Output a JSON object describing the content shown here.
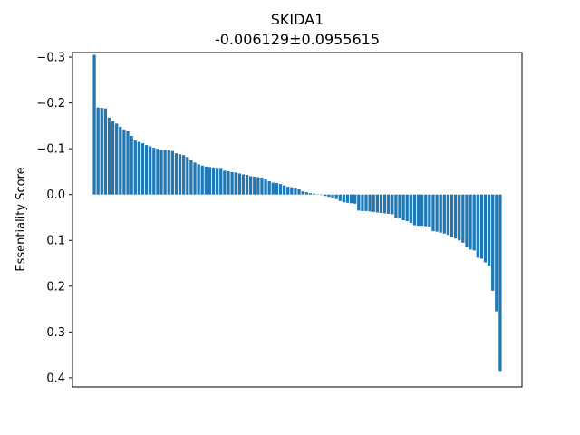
{
  "chart_data": {
    "type": "bar",
    "title": "SKIDA1",
    "subtitle": "-0.006129±0.0955615",
    "xlabel": "",
    "ylabel": "Essentiality Score",
    "ylim": [
      -0.31,
      0.42
    ],
    "y_inverted": true,
    "yticks": [
      -0.3,
      -0.2,
      -0.1,
      0.0,
      0.1,
      0.2,
      0.3,
      0.4
    ],
    "ytick_labels": [
      "−0.3",
      "−0.2",
      "−0.1",
      "0.0",
      "0.1",
      "0.2",
      "0.3",
      "0.4"
    ],
    "color": "#1f77b4",
    "grid": false,
    "values": [
      -0.305,
      -0.19,
      -0.189,
      -0.188,
      -0.168,
      -0.16,
      -0.155,
      -0.148,
      -0.142,
      -0.138,
      -0.128,
      -0.118,
      -0.115,
      -0.112,
      -0.108,
      -0.105,
      -0.102,
      -0.1,
      -0.098,
      -0.098,
      -0.097,
      -0.095,
      -0.09,
      -0.088,
      -0.086,
      -0.082,
      -0.075,
      -0.07,
      -0.066,
      -0.063,
      -0.061,
      -0.06,
      -0.059,
      -0.058,
      -0.058,
      -0.052,
      -0.051,
      -0.049,
      -0.048,
      -0.046,
      -0.044,
      -0.043,
      -0.04,
      -0.039,
      -0.038,
      -0.037,
      -0.034,
      -0.029,
      -0.026,
      -0.025,
      -0.023,
      -0.02,
      -0.017,
      -0.016,
      -0.015,
      -0.012,
      -0.007,
      -0.005,
      -0.003,
      -0.002,
      0.0,
      0.001,
      0.003,
      0.005,
      0.008,
      0.01,
      0.014,
      0.017,
      0.018,
      0.019,
      0.02,
      0.035,
      0.036,
      0.036,
      0.037,
      0.038,
      0.039,
      0.04,
      0.041,
      0.042,
      0.043,
      0.05,
      0.052,
      0.056,
      0.058,
      0.062,
      0.067,
      0.068,
      0.068,
      0.069,
      0.07,
      0.08,
      0.081,
      0.083,
      0.085,
      0.088,
      0.093,
      0.096,
      0.1,
      0.105,
      0.115,
      0.12,
      0.122,
      0.138,
      0.14,
      0.148,
      0.155,
      0.21,
      0.255,
      0.385
    ]
  }
}
